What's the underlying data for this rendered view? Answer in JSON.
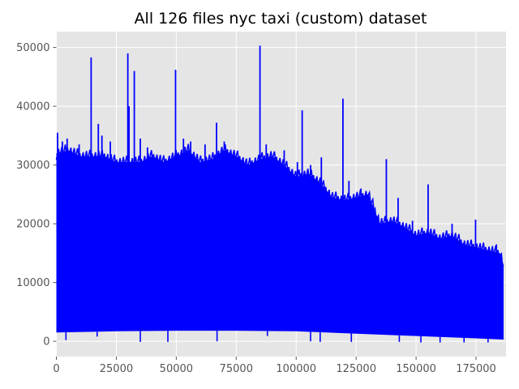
{
  "chart_data": {
    "type": "line",
    "title": "All 126 files nyc taxi (custom) dataset",
    "xlabel": "",
    "ylabel": "",
    "xlim": [
      0,
      187500
    ],
    "ylim": [
      -2600,
      52700
    ],
    "xticks": [
      0,
      25000,
      50000,
      75000,
      100000,
      125000,
      150000,
      175000
    ],
    "xtick_labels": [
      "0",
      "25000",
      "50000",
      "75000",
      "100000",
      "125000",
      "150000",
      "175000"
    ],
    "yticks": [
      0,
      10000,
      20000,
      30000,
      40000,
      50000
    ],
    "ytick_labels": [
      "0",
      "10000",
      "20000",
      "30000",
      "40000",
      "50000"
    ],
    "grid": true,
    "style": "ggplot",
    "series": [
      {
        "color": "#0000ff",
        "upper_envelope": {
          "x": [
            0,
            5000,
            10000,
            20000,
            25000,
            30000,
            35000,
            40000,
            45000,
            50000,
            55000,
            60000,
            65000,
            70000,
            75000,
            80000,
            85000,
            90000,
            95000,
            100000,
            105000,
            110000,
            115000,
            120000,
            125000,
            130000,
            135000,
            140000,
            145000,
            150000,
            155000,
            160000,
            165000,
            170000,
            175000,
            180000,
            185000,
            186500
          ],
          "y": [
            32000,
            32500,
            31500,
            31500,
            30500,
            30500,
            30500,
            31500,
            30500,
            31500,
            32500,
            30500,
            31000,
            32500,
            31500,
            30000,
            31000,
            31500,
            30000,
            28000,
            28500,
            27000,
            24500,
            24000,
            24500,
            25000,
            20000,
            20500,
            19500,
            18000,
            18500,
            17500,
            18000,
            16500,
            16000,
            15500,
            15000,
            13000
          ]
        },
        "lower_envelope": {
          "x": [
            0,
            25000,
            50000,
            75000,
            100000,
            125000,
            150000,
            175000,
            186500
          ],
          "y": [
            1500,
            1700,
            1800,
            1800,
            1700,
            1300,
            900,
            500,
            300
          ]
        },
        "spikes": [
          {
            "x": 500,
            "y": 35500
          },
          {
            "x": 2500,
            "y": 34000
          },
          {
            "x": 4500,
            "y": 34500
          },
          {
            "x": 9500,
            "y": 33500
          },
          {
            "x": 14500,
            "y": 48300
          },
          {
            "x": 17500,
            "y": 37000
          },
          {
            "x": 19000,
            "y": 35000
          },
          {
            "x": 22500,
            "y": 34000
          },
          {
            "x": 29800,
            "y": 49000
          },
          {
            "x": 30300,
            "y": 40000
          },
          {
            "x": 32500,
            "y": 46000
          },
          {
            "x": 35000,
            "y": 34500
          },
          {
            "x": 38000,
            "y": 33000
          },
          {
            "x": 49700,
            "y": 46200
          },
          {
            "x": 53000,
            "y": 34500
          },
          {
            "x": 56000,
            "y": 34000
          },
          {
            "x": 62000,
            "y": 33500
          },
          {
            "x": 66800,
            "y": 37200
          },
          {
            "x": 70000,
            "y": 34000
          },
          {
            "x": 84900,
            "y": 50300
          },
          {
            "x": 87500,
            "y": 33500
          },
          {
            "x": 95000,
            "y": 32500
          },
          {
            "x": 100500,
            "y": 30500
          },
          {
            "x": 102500,
            "y": 39300
          },
          {
            "x": 106000,
            "y": 30000
          },
          {
            "x": 110500,
            "y": 31300
          },
          {
            "x": 119500,
            "y": 41300
          },
          {
            "x": 122000,
            "y": 27300
          },
          {
            "x": 127000,
            "y": 26000
          },
          {
            "x": 137600,
            "y": 31000
          },
          {
            "x": 142500,
            "y": 24400
          },
          {
            "x": 148500,
            "y": 20500
          },
          {
            "x": 155000,
            "y": 26700
          },
          {
            "x": 165000,
            "y": 20000
          },
          {
            "x": 174800,
            "y": 20700
          },
          {
            "x": 183500,
            "y": 16500
          }
        ],
        "dips": [
          {
            "x": 4000,
            "y": 200
          },
          {
            "x": 17000,
            "y": 800
          },
          {
            "x": 35000,
            "y": -100
          },
          {
            "x": 46500,
            "y": -100
          },
          {
            "x": 67000,
            "y": 0
          },
          {
            "x": 88000,
            "y": 900
          },
          {
            "x": 106000,
            "y": 0
          },
          {
            "x": 110000,
            "y": -100
          },
          {
            "x": 123000,
            "y": -100
          },
          {
            "x": 143000,
            "y": -100
          },
          {
            "x": 152000,
            "y": -200
          },
          {
            "x": 160000,
            "y": -200
          },
          {
            "x": 170000,
            "y": -200
          },
          {
            "x": 180000,
            "y": -200
          }
        ]
      }
    ]
  }
}
